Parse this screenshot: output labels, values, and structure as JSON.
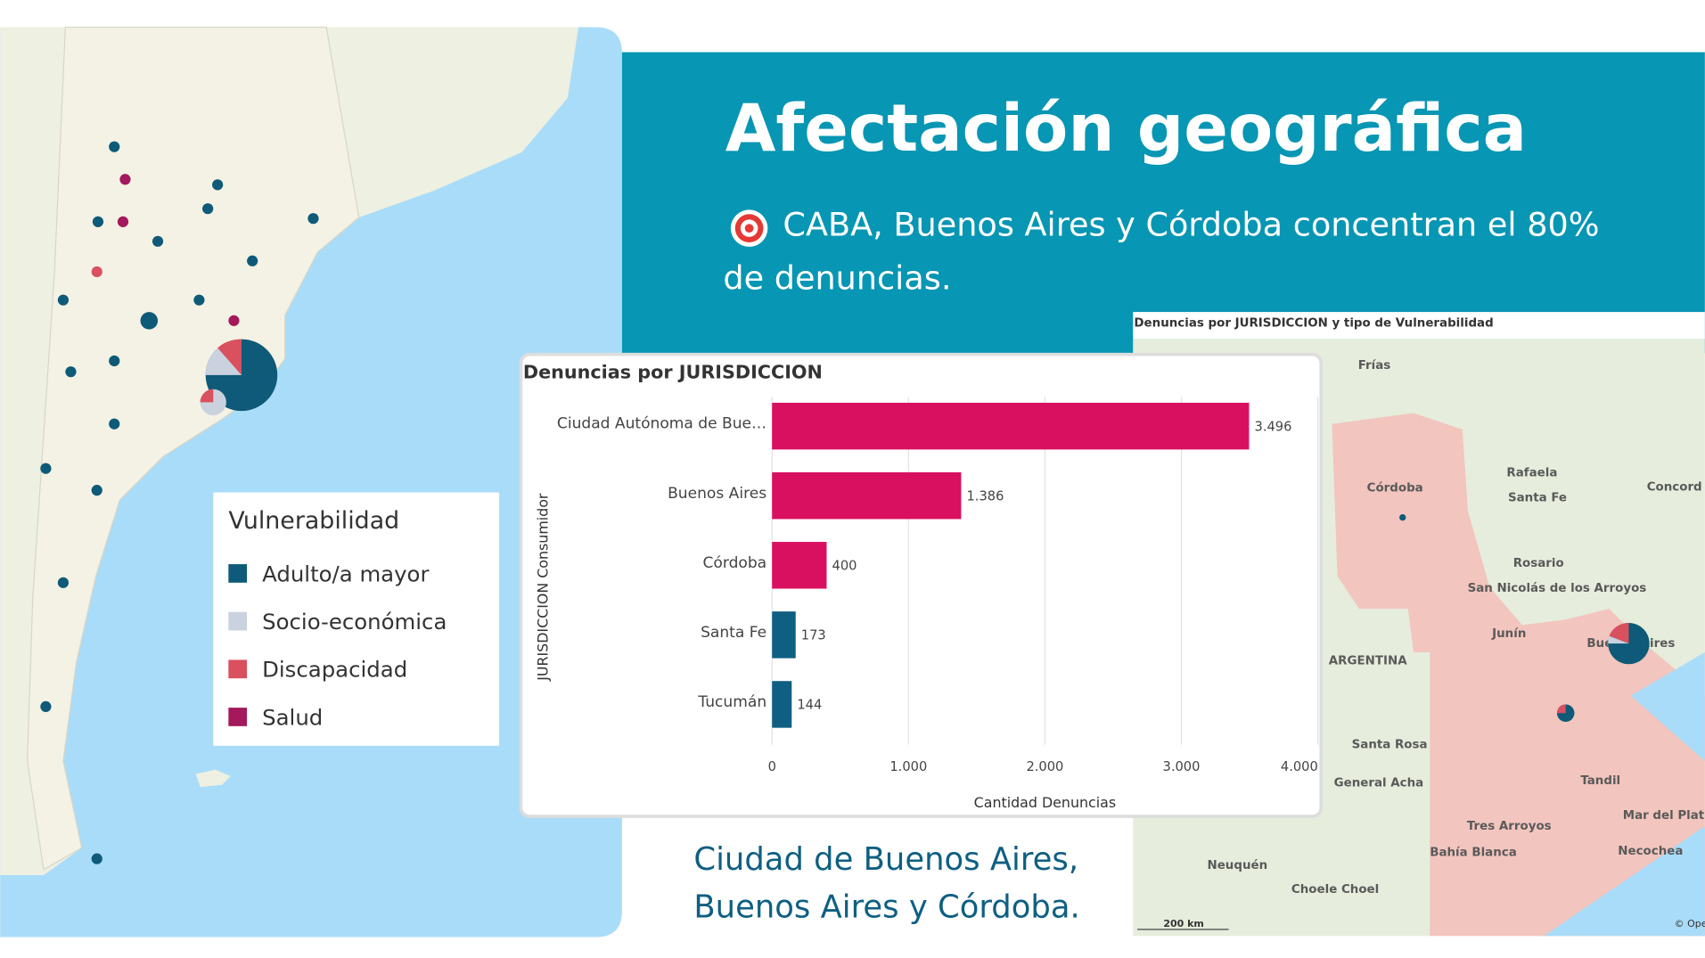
{
  "slide": {
    "title": "Afectación geográfica",
    "highlight": "CABA, Buenos Aires y Córdoba concentran el 80% de denuncias.",
    "caption": "Ciudad de Buenos Aires, Buenos Aires y Córdoba."
  },
  "legend": {
    "title": "Vulnerabilidad",
    "items": [
      {
        "label": "Adulto/a mayor",
        "color": "#0e5a78"
      },
      {
        "label": "Socio-económica",
        "color": "#c9d2de"
      },
      {
        "label": "Discapacidad",
        "color": "#d9505e"
      },
      {
        "label": "Salud",
        "color": "#a3195b"
      }
    ]
  },
  "map": {
    "title": "Denuncias por JURISDICCION  y tipo de Vulnerabilidad",
    "labels": [
      "Frías",
      "Córdoba",
      "Rafaela",
      "Santa Fe",
      "Concord",
      "Rosario",
      "San Nicolás de los Arroyos",
      "Junín",
      "Buenos Aires",
      "ARGENTINA",
      "Santa Rosa",
      "General Acha",
      "Tandil",
      "Mar del Plat",
      "Tres Arroyos",
      "Bahía Blanca",
      "Necochea",
      "Neuquén",
      "Choele Choel"
    ],
    "scale": "200 km",
    "attribution": "© Ope"
  },
  "chart_data": {
    "type": "bar",
    "orientation": "horizontal",
    "title": "Denuncias por JURISDICCION",
    "x_label": "Cantidad Denuncias",
    "y_label": "JURISDICCION   Consumidor",
    "categories": [
      "Ciudad Autónoma de Bue…",
      "Buenos Aires",
      "Córdoba",
      "Santa Fe",
      "Tucumán"
    ],
    "values": [
      3496,
      1386,
      400,
      173,
      144
    ],
    "value_labels": [
      "3.496",
      "1.386",
      "400",
      "173",
      "144"
    ],
    "colors": [
      "#d90f5f",
      "#d90f5f",
      "#d90f5f",
      "#0e5f82",
      "#0e5f82"
    ],
    "xlim": [
      0,
      4000
    ],
    "xticks": [
      0,
      {
        "value": 1000,
        "label": "1.000"
      },
      {
        "value": 2000,
        "label": "2.000"
      },
      {
        "value": 3000,
        "label": "3.000"
      },
      {
        "value": 4000,
        "label": "4.000"
      }
    ],
    "grid": true
  }
}
